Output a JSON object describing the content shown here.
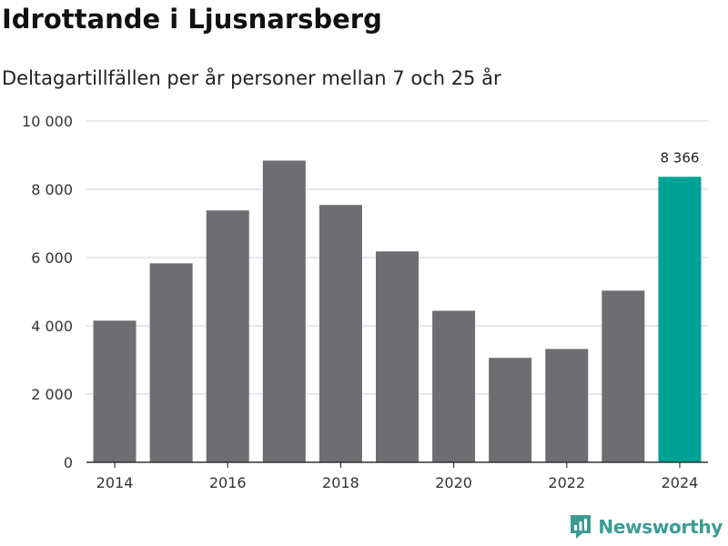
{
  "header": {
    "title": "Idrottande i Ljusnarsberg",
    "subtitle": "Deltagartillfällen per år personer mellan 7 och 25 år"
  },
  "brand": {
    "name": "Newsworthy",
    "icon": "newsworthy-logo-icon"
  },
  "colors": {
    "bar": "#6e6d72",
    "highlight": "#00a296",
    "grid": "#d9d9d9",
    "axis": "#333333",
    "brand": "#3c9c95"
  },
  "chart_data": {
    "type": "bar",
    "title": "Idrottande i Ljusnarsberg",
    "subtitle": "Deltagartillfällen per år personer mellan 7 och 25 år",
    "xlabel": "",
    "ylabel": "",
    "categories": [
      "2014",
      "2015",
      "2016",
      "2017",
      "2018",
      "2019",
      "2020",
      "2021",
      "2022",
      "2023",
      "2024"
    ],
    "values": [
      4150,
      5830,
      7380,
      8840,
      7540,
      6180,
      4440,
      3060,
      3320,
      5030,
      8366
    ],
    "highlight_index": 10,
    "data_labels": [
      {
        "index": 10,
        "text": "8 366"
      }
    ],
    "x_tick_labels": [
      "2014",
      "2016",
      "2018",
      "2020",
      "2022",
      "2024"
    ],
    "y_ticks": [
      0,
      2000,
      4000,
      6000,
      8000,
      10000
    ],
    "y_tick_labels": [
      "0",
      "2 000",
      "4 000",
      "6 000",
      "8 000",
      "10 000"
    ],
    "ylim": [
      0,
      10000
    ],
    "grid": true,
    "legend": "none"
  }
}
